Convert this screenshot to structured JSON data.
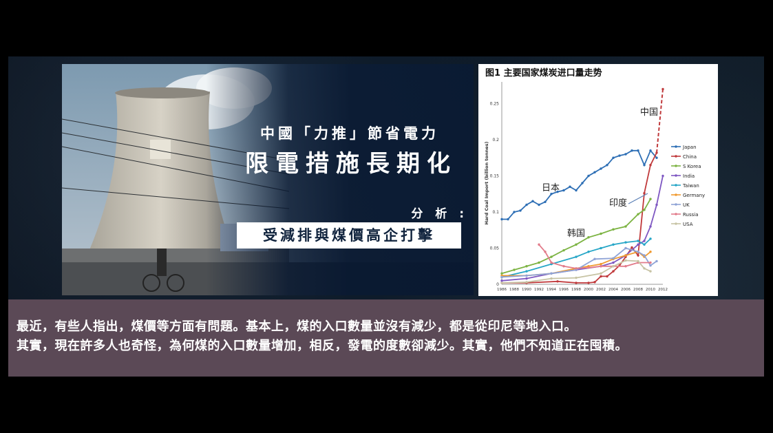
{
  "headline": {
    "line1": "中國「力推」節省電力",
    "line2": "限電措施長期化",
    "analysis_label": "分 析 :",
    "subtitle": "受減排與煤價高企打擊"
  },
  "chart_data": {
    "type": "line",
    "title": "图1 主要国家煤炭进口量走势",
    "ylabel": "Hard Coal Import (billion tonnes)",
    "xlabel": "",
    "ylim": [
      0,
      0.28
    ],
    "yticks": [
      "0",
      "0.05",
      "0.1",
      "0.15",
      "0.2",
      "0.25"
    ],
    "xticks": [
      "1986",
      "1988",
      "1990",
      "1992",
      "1994",
      "1996",
      "1998",
      "2000",
      "2002",
      "2004",
      "2006",
      "2008",
      "2010",
      "2012"
    ],
    "annotations": [
      "中国",
      "日本",
      "印度",
      "韩国"
    ],
    "series": [
      {
        "name": "Japan",
        "color": "#2e6fb5",
        "points": [
          [
            1986,
            0.09
          ],
          [
            1987,
            0.09
          ],
          [
            1988,
            0.1
          ],
          [
            1989,
            0.102
          ],
          [
            1990,
            0.11
          ],
          [
            1991,
            0.115
          ],
          [
            1992,
            0.11
          ],
          [
            1993,
            0.114
          ],
          [
            1994,
            0.125
          ],
          [
            1995,
            0.128
          ],
          [
            1996,
            0.13
          ],
          [
            1997,
            0.135
          ],
          [
            1998,
            0.13
          ],
          [
            1999,
            0.14
          ],
          [
            2000,
            0.15
          ],
          [
            2001,
            0.155
          ],
          [
            2002,
            0.16
          ],
          [
            2003,
            0.165
          ],
          [
            2004,
            0.175
          ],
          [
            2005,
            0.178
          ],
          [
            2006,
            0.18
          ],
          [
            2007,
            0.185
          ],
          [
            2008,
            0.185
          ],
          [
            2009,
            0.165
          ],
          [
            2010,
            0.185
          ],
          [
            2011,
            0.175
          ]
        ]
      },
      {
        "name": "China",
        "color": "#c0393b",
        "points": [
          [
            1986,
            0.002
          ],
          [
            1990,
            0.002
          ],
          [
            1995,
            0.004
          ],
          [
            1998,
            0.002
          ],
          [
            2000,
            0.002
          ],
          [
            2001,
            0.003
          ],
          [
            2002,
            0.011
          ],
          [
            2003,
            0.011
          ],
          [
            2004,
            0.018
          ],
          [
            2005,
            0.026
          ],
          [
            2006,
            0.038
          ],
          [
            2007,
            0.051
          ],
          [
            2008,
            0.04
          ],
          [
            2009,
            0.126
          ],
          [
            2010,
            0.165
          ],
          [
            2011,
            0.182
          ],
          [
            2012,
            0.27
          ]
        ]
      },
      {
        "name": "S Korea",
        "color": "#7cb342",
        "points": [
          [
            1986,
            0.015
          ],
          [
            1988,
            0.02
          ],
          [
            1990,
            0.025
          ],
          [
            1992,
            0.03
          ],
          [
            1994,
            0.038
          ],
          [
            1996,
            0.047
          ],
          [
            1998,
            0.055
          ],
          [
            2000,
            0.065
          ],
          [
            2002,
            0.07
          ],
          [
            2004,
            0.076
          ],
          [
            2006,
            0.08
          ],
          [
            2008,
            0.097
          ],
          [
            2009,
            0.103
          ],
          [
            2010,
            0.118
          ]
        ]
      },
      {
        "name": "India",
        "color": "#7e57c2",
        "points": [
          [
            1986,
            0.005
          ],
          [
            1990,
            0.008
          ],
          [
            1994,
            0.015
          ],
          [
            1998,
            0.02
          ],
          [
            2002,
            0.025
          ],
          [
            2004,
            0.03
          ],
          [
            2006,
            0.04
          ],
          [
            2008,
            0.055
          ],
          [
            2009,
            0.06
          ],
          [
            2010,
            0.08
          ],
          [
            2011,
            0.11
          ],
          [
            2012,
            0.15
          ]
        ]
      },
      {
        "name": "Taiwan",
        "color": "#26a6c7",
        "points": [
          [
            1986,
            0.01
          ],
          [
            1990,
            0.018
          ],
          [
            1994,
            0.028
          ],
          [
            1998,
            0.038
          ],
          [
            2000,
            0.045
          ],
          [
            2002,
            0.05
          ],
          [
            2004,
            0.055
          ],
          [
            2006,
            0.058
          ],
          [
            2008,
            0.06
          ],
          [
            2009,
            0.055
          ],
          [
            2010,
            0.063
          ]
        ]
      },
      {
        "name": "Germany",
        "color": "#f09a30",
        "points": [
          [
            1986,
            0.012
          ],
          [
            1990,
            0.012
          ],
          [
            1994,
            0.015
          ],
          [
            1998,
            0.022
          ],
          [
            2000,
            0.025
          ],
          [
            2002,
            0.028
          ],
          [
            2004,
            0.035
          ],
          [
            2006,
            0.04
          ],
          [
            2008,
            0.045
          ],
          [
            2009,
            0.038
          ],
          [
            2010,
            0.045
          ]
        ]
      },
      {
        "name": "UK",
        "color": "#8fa3d6",
        "points": [
          [
            1986,
            0.01
          ],
          [
            1990,
            0.012
          ],
          [
            1994,
            0.015
          ],
          [
            1998,
            0.02
          ],
          [
            2001,
            0.035
          ],
          [
            2004,
            0.036
          ],
          [
            2006,
            0.05
          ],
          [
            2008,
            0.045
          ],
          [
            2009,
            0.04
          ],
          [
            2010,
            0.026
          ],
          [
            2011,
            0.032
          ]
        ]
      },
      {
        "name": "Russia",
        "color": "#e27b8a",
        "points": [
          [
            1992,
            0.055
          ],
          [
            1993,
            0.045
          ],
          [
            1994,
            0.03
          ],
          [
            1996,
            0.025
          ],
          [
            1998,
            0.022
          ],
          [
            2000,
            0.023
          ],
          [
            2002,
            0.025
          ],
          [
            2004,
            0.025
          ],
          [
            2006,
            0.025
          ],
          [
            2008,
            0.03
          ],
          [
            2010,
            0.03
          ]
        ]
      },
      {
        "name": "USA",
        "color": "#c7c3a4",
        "points": [
          [
            1986,
            0.002
          ],
          [
            1990,
            0.003
          ],
          [
            1994,
            0.008
          ],
          [
            1998,
            0.009
          ],
          [
            2002,
            0.015
          ],
          [
            2004,
            0.025
          ],
          [
            2006,
            0.033
          ],
          [
            2008,
            0.032
          ],
          [
            2009,
            0.022
          ],
          [
            2010,
            0.018
          ]
        ]
      }
    ],
    "legend": [
      "Japan",
      "China",
      "S Korea",
      "India",
      "Taiwan",
      "Germany",
      "UK",
      "Russia",
      "USA"
    ],
    "legend_placement": "right"
  },
  "caption": {
    "line1": "最近，有些人指出，煤價等方面有問題。基本上，煤的入口數量並沒有減少，都是從印尼等地入口。",
    "line2": "其實，現在許多人也奇怪，為何煤的入口數量增加，相反，發電的度數卻減少。其實，他們不知道正在囤積。"
  }
}
